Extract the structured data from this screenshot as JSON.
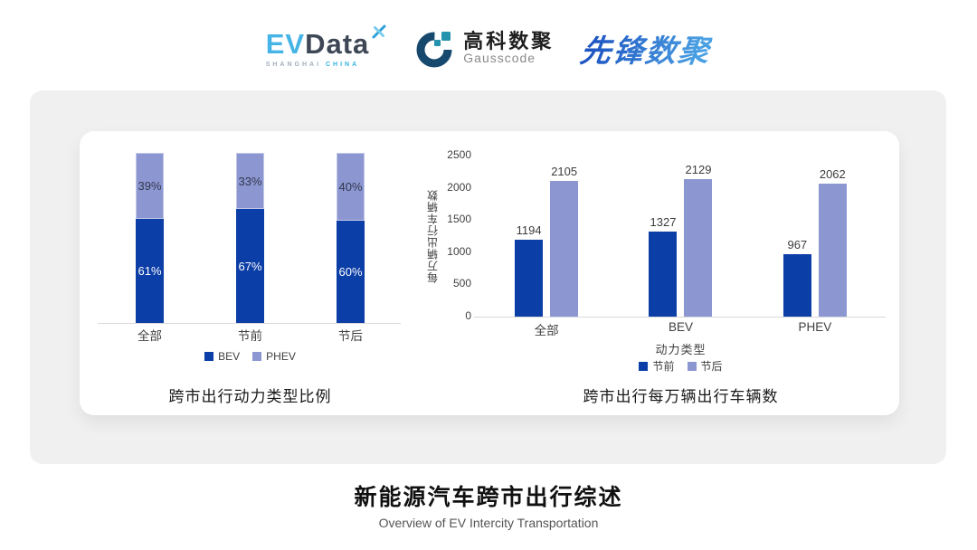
{
  "header": {
    "evdata": {
      "part1": "EV",
      "part2": "Data",
      "sub1": "SHANGHAI",
      "sub2": "CHINA"
    },
    "gausscode": {
      "name_cn": "高科数聚",
      "name_en": "Gausscode"
    },
    "pioneer": {
      "name": "先锋数聚"
    }
  },
  "colors": {
    "series_dark_blue": "#0c3ea7",
    "series_light_blue": "#8c97d2",
    "card_bg": "#f0f0f0",
    "panel_bg": "#ffffff",
    "axis_line": "#d9d9d9",
    "evdata_blue": "#45b4e6",
    "evdata_dark": "#3e4756",
    "gauss_navy": "#17496e",
    "gauss_teal": "#2493ae",
    "pioneer_blue": "#2a7cd2"
  },
  "chart_data": [
    {
      "type": "bar",
      "subtype": "stacked-percent",
      "title": "跨市出行动力类型比例",
      "categories": [
        "全部",
        "节前",
        "节后"
      ],
      "series": [
        {
          "name": "BEV",
          "color": "#0c3ea7",
          "values": [
            61,
            67,
            60
          ],
          "unit": "%"
        },
        {
          "name": "PHEV",
          "color": "#8c97d2",
          "values": [
            39,
            33,
            40
          ],
          "unit": "%"
        }
      ],
      "xlabel": "",
      "ylabel": "",
      "ylim": [
        0,
        100
      ],
      "grid": false,
      "legend_position": "bottom"
    },
    {
      "type": "bar",
      "subtype": "grouped",
      "title": "跨市出行每万辆出行车辆数",
      "categories": [
        "全部",
        "BEV",
        "PHEV"
      ],
      "series": [
        {
          "name": "节前",
          "color": "#0c3ea7",
          "values": [
            1194,
            1327,
            967
          ]
        },
        {
          "name": "节后",
          "color": "#8c97d2",
          "values": [
            2105,
            2129,
            2062
          ]
        }
      ],
      "xlabel": "动力类型",
      "ylabel": "每万辆出行车辆数",
      "ylim": [
        0,
        2500
      ],
      "yticks": [
        0,
        500,
        1000,
        1500,
        2000,
        2500
      ],
      "grid": false,
      "legend_position": "bottom"
    }
  ],
  "footer": {
    "title": "新能源汽车跨市出行综述",
    "subtitle": "Overview of EV Intercity Transportation"
  }
}
